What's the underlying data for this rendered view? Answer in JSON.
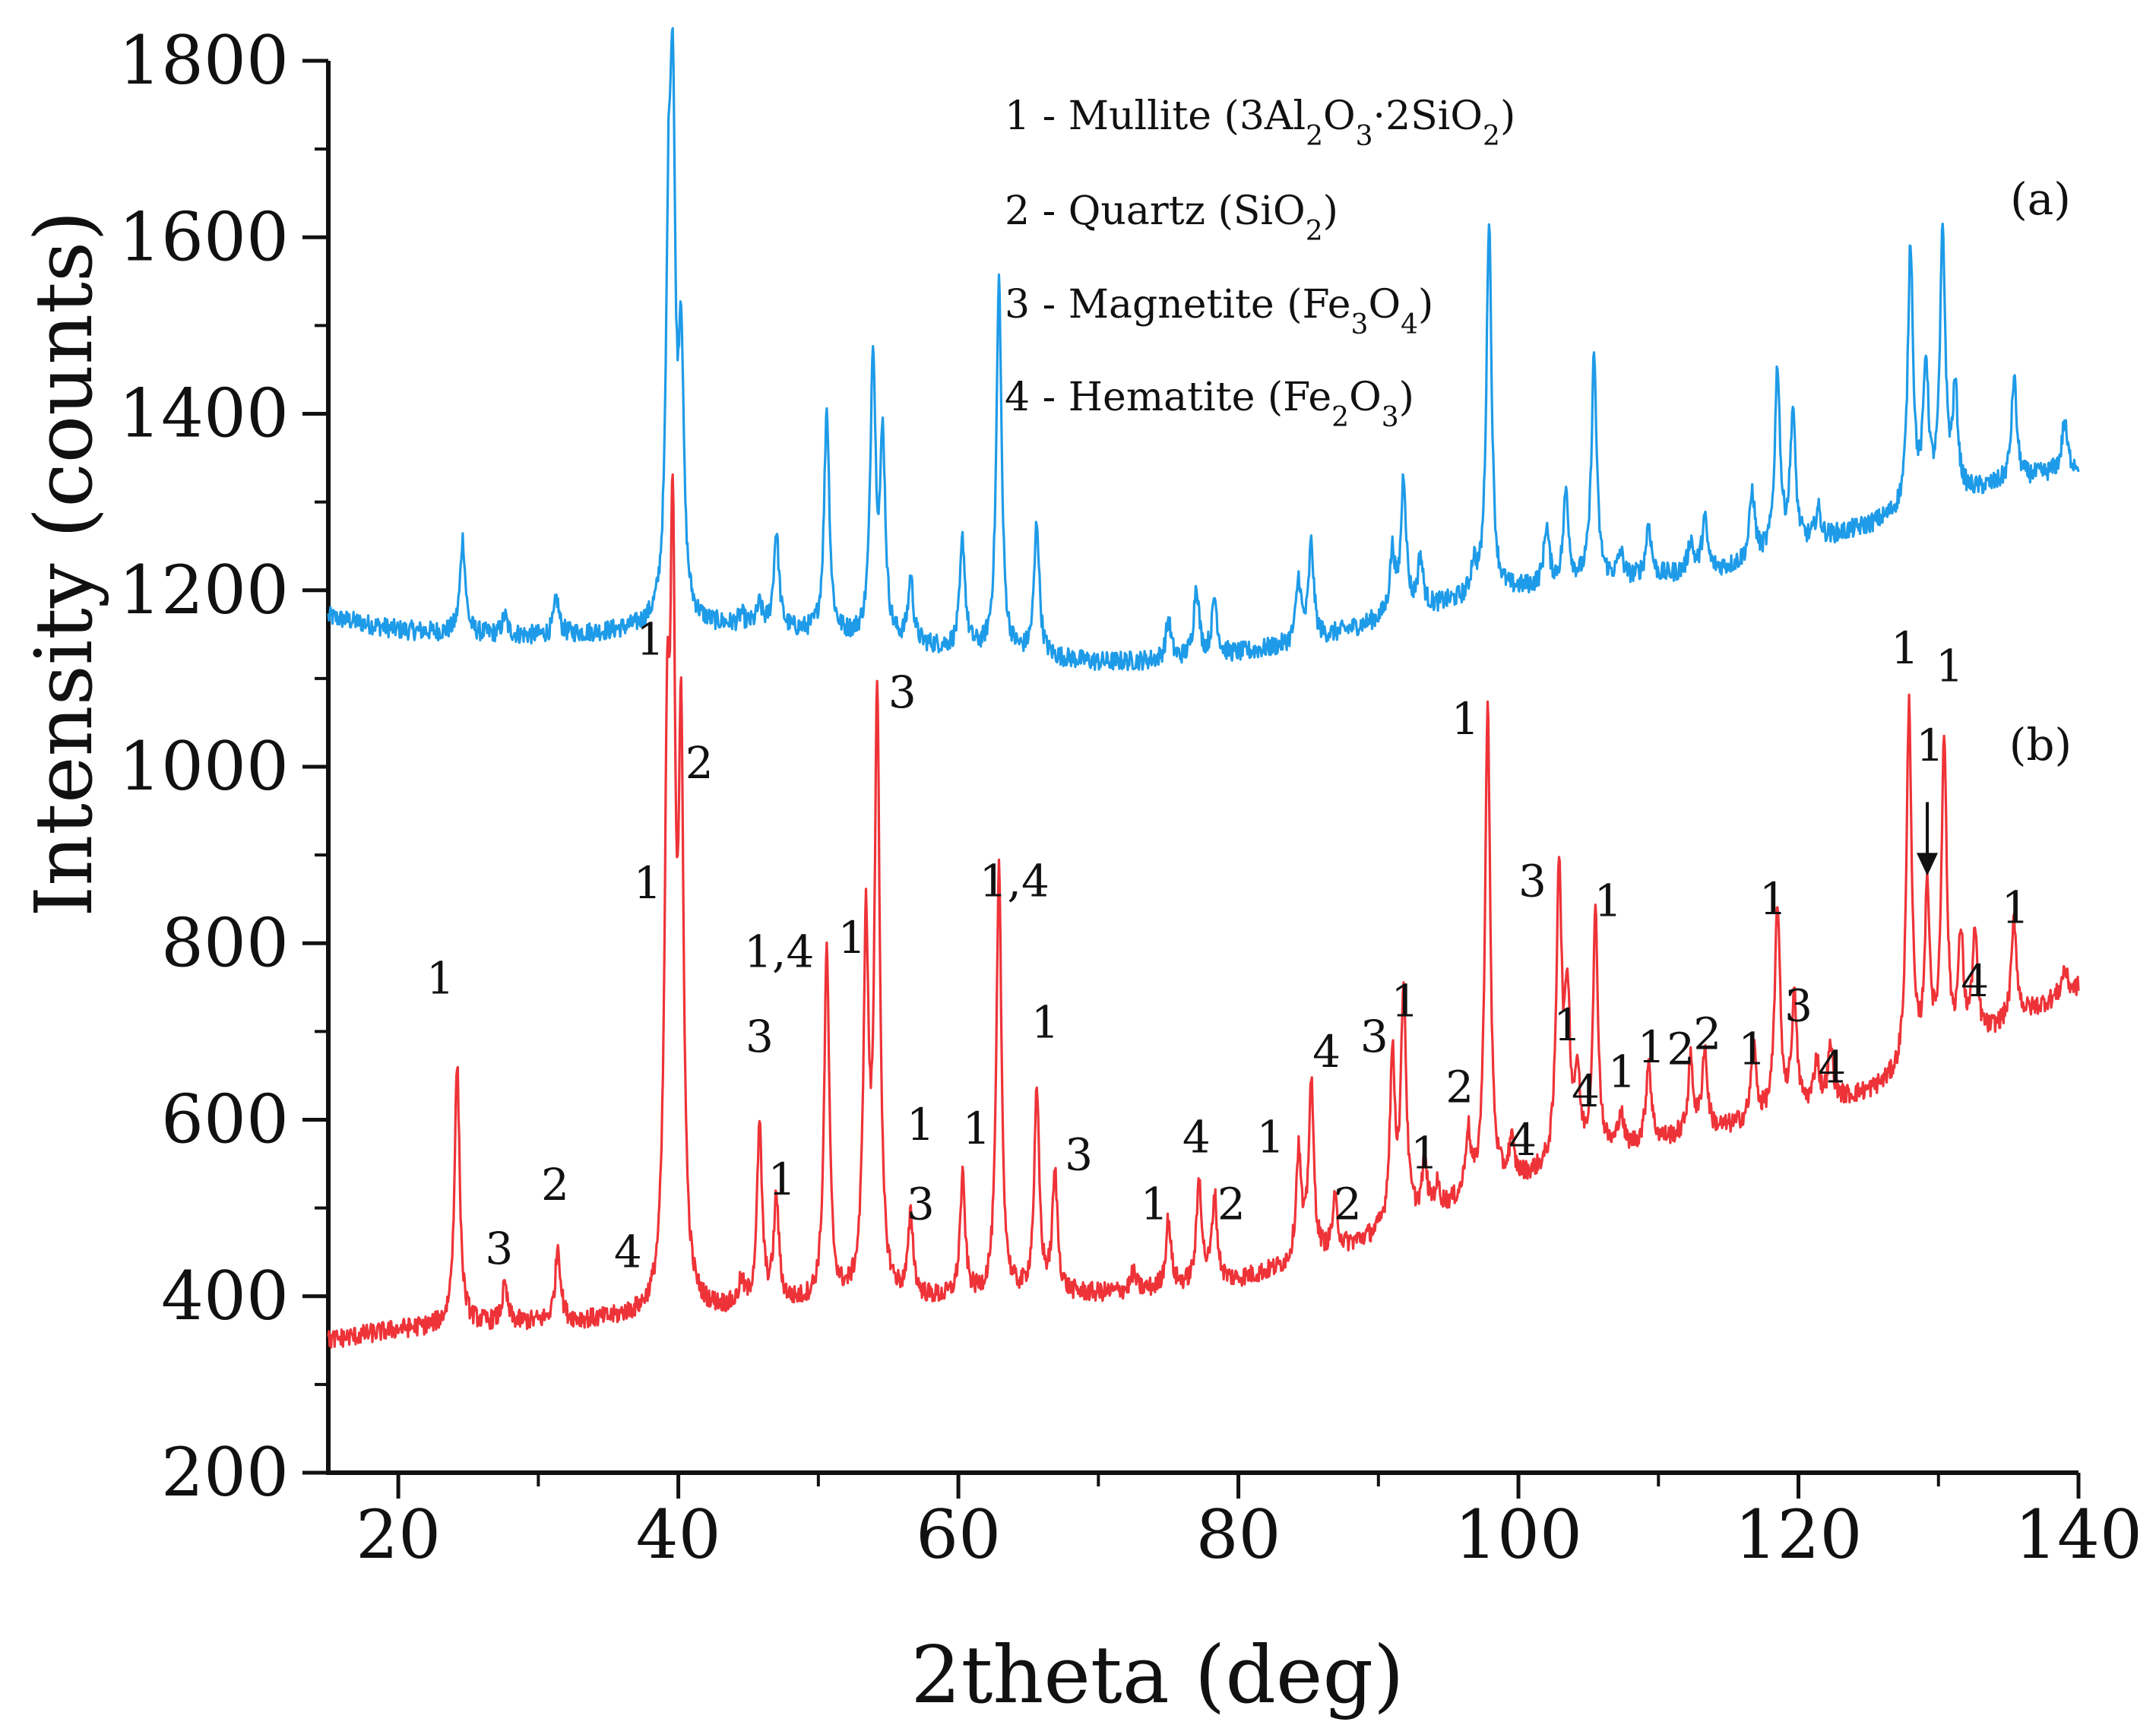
{
  "chart_data": {
    "type": "line",
    "xlabel": "2theta (deg)",
    "ylabel": "Intensity (counts)",
    "xlim": [
      15,
      140
    ],
    "ylim": [
      200,
      1800
    ],
    "xticks": [
      20,
      40,
      60,
      80,
      100,
      120,
      140
    ],
    "yticks": [
      200,
      400,
      600,
      800,
      1000,
      1200,
      1400,
      1600,
      1800
    ],
    "grid": false,
    "colors": {
      "a": "#1e9be8",
      "b": "#ee3338",
      "axis": "#111111"
    },
    "legend": {
      "placement": "top-center",
      "entries": [
        {
          "prefix": "1 - Mullite (3Al",
          "parts": [
            [
              "2",
              "sub"
            ],
            [
              "O",
              ""
            ],
            [
              "3",
              "sub"
            ],
            [
              "·2SiO",
              ""
            ],
            [
              "2",
              "sub"
            ],
            [
              ")",
              ""
            ]
          ]
        },
        {
          "prefix": "2 - Quartz (SiO",
          "parts": [
            [
              "2",
              "sub"
            ],
            [
              ")",
              ""
            ]
          ]
        },
        {
          "prefix": "3 - Magnetite (Fe",
          "parts": [
            [
              "3",
              "sub"
            ],
            [
              "O",
              ""
            ],
            [
              "4",
              "sub"
            ],
            [
              ")",
              ""
            ]
          ]
        },
        {
          "prefix": "4 - Hematite (Fe",
          "parts": [
            [
              "2",
              "sub"
            ],
            [
              "O",
              ""
            ],
            [
              "3",
              "sub"
            ],
            [
              ")",
              ""
            ]
          ]
        }
      ]
    },
    "series": [
      {
        "id": "a",
        "label": "(a)",
        "baseline": [
          [
            15,
            1170
          ],
          [
            20,
            1155
          ],
          [
            25,
            1150
          ],
          [
            30,
            1148
          ],
          [
            35,
            1152
          ],
          [
            40,
            1160
          ],
          [
            45,
            1158
          ],
          [
            50,
            1150
          ],
          [
            55,
            1140
          ],
          [
            60,
            1132
          ],
          [
            65,
            1125
          ],
          [
            70,
            1118
          ],
          [
            75,
            1120
          ],
          [
            80,
            1128
          ],
          [
            85,
            1140
          ],
          [
            90,
            1165
          ],
          [
            95,
            1185
          ],
          [
            100,
            1200
          ],
          [
            105,
            1210
          ],
          [
            110,
            1215
          ],
          [
            115,
            1225
          ],
          [
            120,
            1250
          ],
          [
            125,
            1272
          ],
          [
            130,
            1300
          ],
          [
            135,
            1322
          ],
          [
            140,
            1340
          ]
        ],
        "peaks": [
          [
            24.6,
            1258
          ],
          [
            27.6,
            1170
          ],
          [
            31.3,
            1190
          ],
          [
            39.3,
            1530
          ],
          [
            39.6,
            1675
          ],
          [
            40.2,
            1450
          ],
          [
            44.5,
            1170
          ],
          [
            45.8,
            1180
          ],
          [
            47.0,
            1265
          ],
          [
            50.6,
            1405
          ],
          [
            53.9,
            1465
          ],
          [
            54.6,
            1360
          ],
          [
            56.6,
            1210
          ],
          [
            60.3,
            1255
          ],
          [
            62.9,
            1550
          ],
          [
            65.6,
            1275
          ],
          [
            75.0,
            1165
          ],
          [
            77.0,
            1205
          ],
          [
            78.3,
            1190
          ],
          [
            84.3,
            1210
          ],
          [
            85.2,
            1250
          ],
          [
            91.0,
            1240
          ],
          [
            91.8,
            1325
          ],
          [
            93.0,
            1235
          ],
          [
            96.8,
            1225
          ],
          [
            97.9,
            1620
          ],
          [
            102.0,
            1270
          ],
          [
            103.4,
            1310
          ],
          [
            105.4,
            1465
          ],
          [
            107.3,
            1240
          ],
          [
            109.3,
            1275
          ],
          [
            112.3,
            1255
          ],
          [
            113.3,
            1280
          ],
          [
            116.7,
            1310
          ],
          [
            118.5,
            1450
          ],
          [
            119.6,
            1400
          ],
          [
            121.4,
            1290
          ],
          [
            128.0,
            1590
          ],
          [
            129.1,
            1450
          ],
          [
            130.3,
            1600
          ],
          [
            131.2,
            1420
          ],
          [
            135.4,
            1440
          ],
          [
            139.0,
            1390
          ]
        ]
      },
      {
        "id": "b",
        "label": "(b)",
        "baseline": [
          [
            15,
            350
          ],
          [
            20,
            362
          ],
          [
            25,
            368
          ],
          [
            30,
            370
          ],
          [
            35,
            372
          ],
          [
            40,
            378
          ],
          [
            45,
            385
          ],
          [
            50,
            392
          ],
          [
            55,
            395
          ],
          [
            60,
            395
          ],
          [
            65,
            400
          ],
          [
            70,
            402
          ],
          [
            75,
            408
          ],
          [
            80,
            418
          ],
          [
            85,
            438
          ],
          [
            90,
            468
          ],
          [
            95,
            500
          ],
          [
            100,
            530
          ],
          [
            105,
            555
          ],
          [
            110,
            575
          ],
          [
            115,
            590
          ],
          [
            120,
            610
          ],
          [
            125,
            630
          ],
          [
            130,
            665
          ],
          [
            135,
            710
          ],
          [
            140,
            750
          ]
        ],
        "peaks": [
          [
            24.2,
            663
          ],
          [
            27.6,
            410
          ],
          [
            31.4,
            456
          ],
          [
            36.2,
            375
          ],
          [
            39.2,
            915
          ],
          [
            39.6,
            1145
          ],
          [
            40.2,
            975
          ],
          [
            44.5,
            410
          ],
          [
            45.8,
            586
          ],
          [
            47.0,
            505
          ],
          [
            50.6,
            790
          ],
          [
            53.4,
            800
          ],
          [
            54.2,
            1075
          ],
          [
            56.6,
            485
          ],
          [
            60.3,
            530
          ],
          [
            62.9,
            880
          ],
          [
            65.6,
            625
          ],
          [
            66.9,
            535
          ],
          [
            72.5,
            425
          ],
          [
            75.0,
            485
          ],
          [
            77.2,
            530
          ],
          [
            78.3,
            510
          ],
          [
            84.3,
            560
          ],
          [
            85.2,
            638
          ],
          [
            86.9,
            505
          ],
          [
            91.0,
            665
          ],
          [
            91.8,
            745
          ],
          [
            93.3,
            545
          ],
          [
            94.2,
            520
          ],
          [
            96.4,
            580
          ],
          [
            97.8,
            1070
          ],
          [
            99.5,
            570
          ],
          [
            102.9,
            880
          ],
          [
            103.5,
            725
          ],
          [
            104.2,
            640
          ],
          [
            105.5,
            828
          ],
          [
            107.3,
            605
          ],
          [
            109.3,
            665
          ],
          [
            112.3,
            665
          ],
          [
            113.3,
            677
          ],
          [
            116.8,
            680
          ],
          [
            118.5,
            843
          ],
          [
            119.7,
            735
          ],
          [
            121.3,
            665
          ],
          [
            122.3,
            680
          ],
          [
            127.9,
            1065
          ],
          [
            129.2,
            850
          ],
          [
            130.4,
            1030
          ],
          [
            131.6,
            800
          ],
          [
            132.6,
            805
          ],
          [
            135.4,
            825
          ],
          [
            139.0,
            770
          ]
        ],
        "annotations": [
          [
            "1",
            23.0,
            743
          ],
          [
            "3",
            27.2,
            437
          ],
          [
            "2",
            31.2,
            509
          ],
          [
            "4",
            36.4,
            433
          ],
          [
            "1",
            38.0,
            1127
          ],
          [
            "1",
            37.8,
            851
          ],
          [
            "2",
            41.5,
            987
          ],
          [
            "1,4",
            47.2,
            773
          ],
          [
            "3",
            45.8,
            677
          ],
          [
            "1",
            47.4,
            515
          ],
          [
            "1",
            52.4,
            789
          ],
          [
            "3",
            56.0,
            1067
          ],
          [
            "1",
            57.3,
            577
          ],
          [
            "3",
            57.3,
            487
          ],
          [
            "1",
            61.3,
            573
          ],
          [
            "1,4",
            64.0,
            853
          ],
          [
            "1",
            66.2,
            693
          ],
          [
            "3",
            68.6,
            543
          ],
          [
            "1",
            74.0,
            487
          ],
          [
            "4",
            77.0,
            563
          ],
          [
            "2",
            79.5,
            487
          ],
          [
            "1",
            82.3,
            563
          ],
          [
            "4",
            86.3,
            660
          ],
          [
            "2",
            87.8,
            487
          ],
          [
            "3",
            89.7,
            677
          ],
          [
            "1",
            91.9,
            717
          ],
          [
            "1",
            93.3,
            545
          ],
          [
            "2",
            95.8,
            620
          ],
          [
            "4",
            100.3,
            560
          ],
          [
            "1",
            96.2,
            1037
          ],
          [
            "3",
            101.0,
            853
          ],
          [
            "1",
            103.5,
            690
          ],
          [
            "4",
            104.8,
            615
          ],
          [
            "1",
            106.4,
            831
          ],
          [
            "1",
            107.4,
            637
          ],
          [
            "1",
            109.5,
            665
          ],
          [
            "2",
            111.6,
            663
          ],
          [
            "2",
            113.5,
            680
          ],
          [
            "1",
            116.7,
            663
          ],
          [
            "1",
            118.2,
            833
          ],
          [
            "3",
            120.0,
            712
          ],
          [
            "4",
            122.4,
            642
          ],
          [
            "1",
            127.6,
            1117
          ],
          [
            "1",
            130.8,
            1097
          ],
          [
            "1",
            129.4,
            1007
          ],
          [
            "4",
            132.6,
            740
          ],
          [
            "1",
            135.5,
            823
          ]
        ],
        "arrow": {
          "x": 129.2,
          "y_from": 960,
          "y_to": 880
        }
      }
    ]
  }
}
